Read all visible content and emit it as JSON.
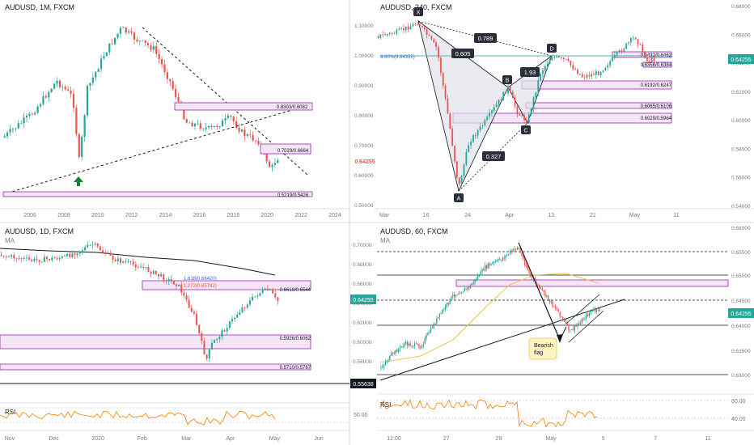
{
  "colors": {
    "bull": "#26a69a",
    "bear": "#ef5350",
    "zone_stroke": "#9c27b0",
    "zone_fill": "#f3e5f5",
    "axis_text": "#787b86",
    "grid": "#f0f3fa",
    "price_tag": "#26a69a",
    "price_tag_red": "#ef5350",
    "rsi": "#f57c00",
    "ma_orange": "#f5c14b",
    "pattern_fill": "#e0e3eb",
    "label_bg": "#2a2e39",
    "divider": "#d1d4dc"
  },
  "panels": [
    {
      "id": "monthly",
      "title": "AUDUSD, 1M, FXCM",
      "x_labels": [
        "2006",
        "2008",
        "2010",
        "2012",
        "2014",
        "2016",
        "2018",
        "2020",
        "2022",
        "2024"
      ],
      "y_labels": [
        "1.10000",
        "1.00000",
        "0.90000",
        "0.80000",
        "0.70000",
        "0.60000",
        "0.50000"
      ],
      "zones": [
        "0.8303/0.8082",
        "0.7029/0.6664",
        "0.5219/0.5426"
      ],
      "price_tag": "0.64255",
      "marker_icon": "up-arrow-icon"
    },
    {
      "id": "h4",
      "title": "AUDUSD, 240, FXCM",
      "x_labels": [
        "Mar",
        "16",
        "24",
        "Apr",
        "13",
        "21",
        "May",
        "11"
      ],
      "y_labels": [
        "0.68000",
        "0.66000",
        "0.64000",
        "0.62000",
        "0.60000",
        "0.58000",
        "0.56000",
        "0.54000"
      ],
      "zones": [
        "0.6432/0.6462",
        "0.6356/0.6384",
        "0.6192/0.6247",
        "0.6065/0.6106",
        "0.6029/0.5964"
      ],
      "price_tag": "0.64255",
      "pattern_points": [
        "X",
        "A",
        "B",
        "C",
        "D"
      ],
      "ratios": [
        "0.789",
        "0.605",
        "1.93",
        "0.327"
      ],
      "fib_label": "8.60%(0.64335)"
    },
    {
      "id": "daily",
      "title": "AUDUSD, 1D, FXCM",
      "ma_label": "MA",
      "x_labels": [
        "Nov",
        "Dec",
        "2020",
        "Feb",
        "Mar",
        "Apr",
        "May",
        "Jun"
      ],
      "y_labels": [
        "0.70000",
        "0.68000",
        "0.66000",
        "0.64000",
        "0.62000",
        "0.60000",
        "0.58000"
      ],
      "zones": [
        "0.6618/0.6544",
        "0.5926/0.6062",
        "0.5710/0.5767"
      ],
      "fib_top": "1.618(0.66420)",
      "fib_mid": "1.272(0.65782)",
      "price_tag": "0.64255",
      "low_tag": "0.55638",
      "rsi_label": "RSI",
      "rsi_value": "50.00"
    },
    {
      "id": "h1",
      "title": "AUDUSD, 60, FXCM",
      "ma_label": "MA",
      "x_labels": [
        "12:00",
        "27",
        "29",
        "May",
        "5",
        "7",
        "11"
      ],
      "y_labels": [
        "0.66000",
        "0.65500",
        "0.65000",
        "0.64500",
        "0.64255",
        "0.64000",
        "0.63500",
        "0.63000"
      ],
      "callout": "Bearish\nflag",
      "price_tag": "0.64255",
      "rsi_label": "RSI",
      "rsi_values": [
        "80.00",
        "40.00"
      ]
    }
  ]
}
